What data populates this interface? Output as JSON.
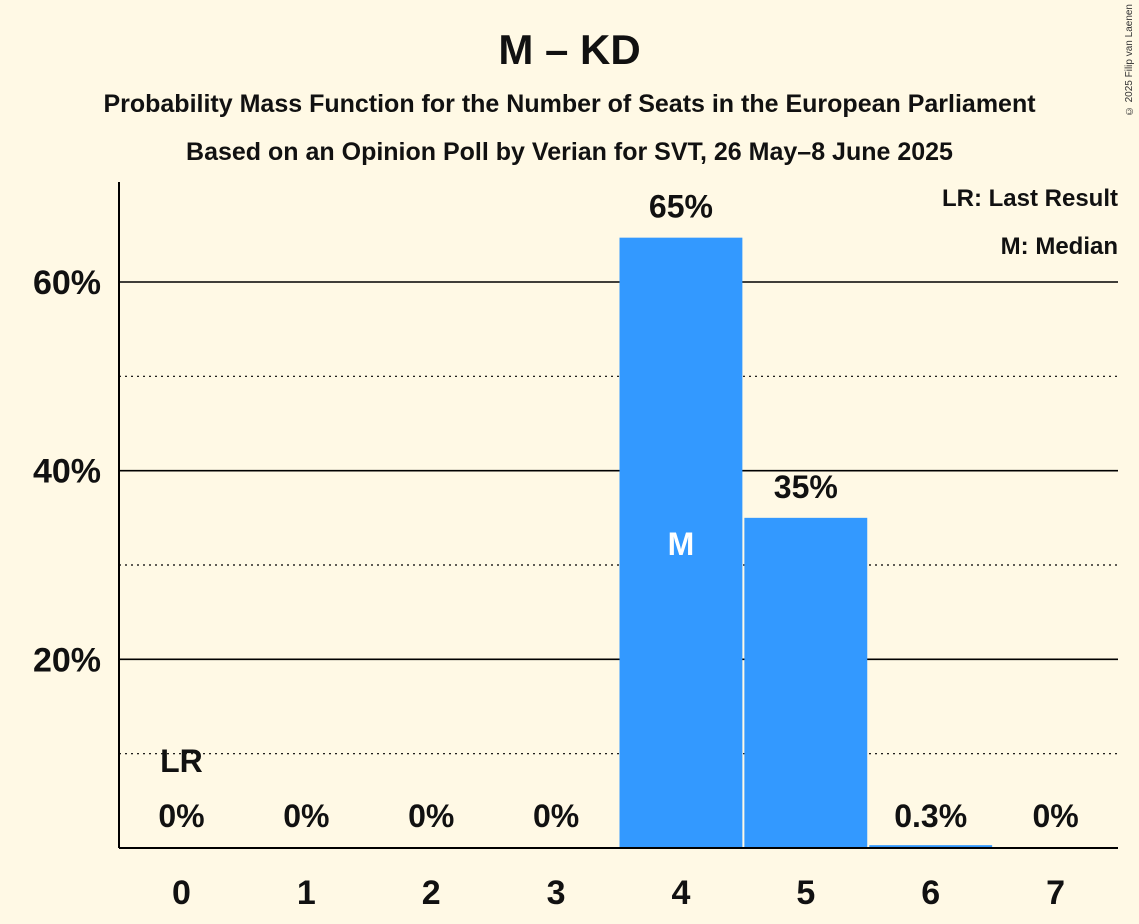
{
  "title": "M – KD",
  "subtitle_line1": "Probability Mass Function for the Number of Seats in the European Parliament",
  "subtitle_line2": "Based on an Opinion Poll by Verian for SVT, 26 May–8 June 2025",
  "copyright": "© 2025 Filip van Laenen",
  "legend": {
    "last_result": "LR: Last Result",
    "median": "M: Median"
  },
  "colors": {
    "background": "#FFF9E5",
    "bar": "#3399FF",
    "axis": "#000000"
  },
  "chart_data": {
    "type": "bar",
    "categories": [
      "0",
      "1",
      "2",
      "3",
      "4",
      "5",
      "6",
      "7"
    ],
    "values": [
      0,
      0,
      0,
      0,
      64.7,
      35.0,
      0.3,
      0
    ],
    "value_labels": [
      "0%",
      "0%",
      "0%",
      "0%",
      "65%",
      "35%",
      "0.3%",
      "0%"
    ],
    "ylim": [
      0,
      70
    ],
    "yticks_major": [
      20,
      40,
      60
    ],
    "ytick_labels": [
      "20%",
      "40%",
      "60%"
    ],
    "yticks_minor": [
      10,
      30,
      50
    ],
    "last_result_category": "0",
    "last_result_label": "LR",
    "median_category": "4",
    "median_label": "M",
    "grid": true,
    "legend_position": "top-right"
  }
}
